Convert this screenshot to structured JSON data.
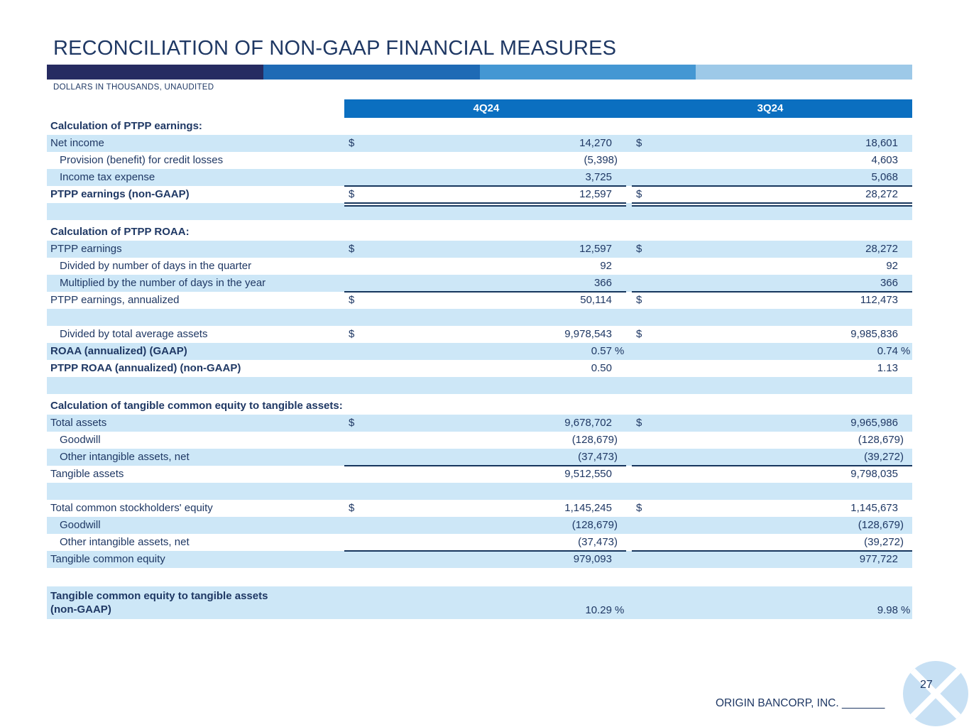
{
  "title": "RECONCILIATION OF NON-GAAP FINANCIAL MEASURES",
  "subtitle": "DOLLARS IN THOUSANDS, UNAUDITED",
  "columns": [
    "4Q24",
    "3Q24"
  ],
  "colors": {
    "text_navy": "#1F3864",
    "rule_navy": "#17365D",
    "row_shade": "#CDE7F7",
    "header_blue": "#0B6FC0",
    "logo_blue": "#C7E0F4",
    "gradient": [
      "#262B61",
      "#1E6AB5",
      "#4497D3",
      "#9DC9E8"
    ]
  },
  "table": {
    "rows": [
      {
        "label": "Calculation of PTPP earnings:",
        "bold": true
      },
      {
        "label": "Net income",
        "shade": true,
        "cur1": "$",
        "v1": "14,270",
        "cur2": "$",
        "v2": "18,601"
      },
      {
        "label": "Provision (benefit) for credit losses",
        "indent": true,
        "v1": "(5,398)",
        "v2": "4,603"
      },
      {
        "label": "Income tax expense",
        "indent": true,
        "shade": true,
        "v1": "3,725",
        "v2": "5,068",
        "line": "single"
      },
      {
        "label": "PTPP earnings (non-GAAP)",
        "bold": true,
        "cur1": "$",
        "v1": "12,597",
        "cur2": "$",
        "v2": "28,272",
        "line": "double"
      },
      {
        "label": "",
        "shade": true
      },
      {
        "gap": 5
      },
      {
        "label": "Calculation of PTPP ROAA:",
        "bold": true
      },
      {
        "label": "PTPP earnings",
        "shade": true,
        "cur1": "$",
        "v1": "12,597",
        "cur2": "$",
        "v2": "28,272"
      },
      {
        "label": "Divided by number of days in the quarter",
        "indent": true,
        "v1": "92",
        "v2": "92"
      },
      {
        "label": "Multiplied by the number of days in the year",
        "indent": true,
        "shade": true,
        "v1": "366",
        "v2": "366",
        "line": "single"
      },
      {
        "label": "PTPP earnings, annualized",
        "cur1": "$",
        "v1": "50,114",
        "cur2": "$",
        "v2": "112,473"
      },
      {
        "label": "",
        "shade": true
      },
      {
        "label": "Divided by total average assets",
        "indent": true,
        "cur1": "$",
        "v1": "9,978,543",
        "cur2": "$",
        "v2": "9,985,836"
      },
      {
        "label": "ROAA (annualized) (GAAP)",
        "bold": true,
        "shade": true,
        "v1": "0.57",
        "sfx1": "%",
        "v2": "0.74",
        "sfx2": "%"
      },
      {
        "label": "PTPP ROAA (annualized) (non-GAAP)",
        "bold": true,
        "v1": "0.50",
        "v2": "1.13"
      },
      {
        "label": "",
        "shade": true
      },
      {
        "gap": 5
      },
      {
        "label": "Calculation of tangible common equity to tangible assets:",
        "bold": true
      },
      {
        "label": "Total assets",
        "shade": true,
        "cur1": "$",
        "v1": "9,678,702",
        "cur2": "$",
        "v2": "9,965,986"
      },
      {
        "label": "Goodwill",
        "indent": true,
        "v1": "(128,679)",
        "v2": "(128,679)"
      },
      {
        "label": "Other intangible assets, net",
        "indent": true,
        "shade": true,
        "v1": "(37,473)",
        "v2": "(39,272)",
        "line": "single"
      },
      {
        "label": "Tangible assets",
        "v1": "9,512,550",
        "v2": "9,798,035"
      },
      {
        "label": "",
        "shade": true
      },
      {
        "label": "Total common stockholders' equity",
        "cur1": "$",
        "v1": "1,145,245",
        "cur2": "$",
        "v2": "1,145,673"
      },
      {
        "label": "Goodwill",
        "indent": true,
        "shade": true,
        "v1": "(128,679)",
        "v2": "(128,679)"
      },
      {
        "label": "Other intangible assets, net",
        "indent": true,
        "v1": "(37,473)",
        "v2": "(39,272)",
        "line": "single"
      },
      {
        "label": "Tangible common equity",
        "shade": true,
        "v1": "979,093",
        "v2": "977,722"
      },
      {
        "gap": 26
      },
      {
        "label": "Tangible common equity to tangible assets",
        "label2": "(non-GAAP)",
        "bold": true,
        "shade": true,
        "tall": true,
        "v1": "10.29",
        "sfx1": "%",
        "v2": "9.98",
        "sfx2": "%"
      }
    ]
  },
  "footer": {
    "company": "ORIGIN BANCORP, INC.",
    "blank": "_______",
    "page": "27"
  }
}
